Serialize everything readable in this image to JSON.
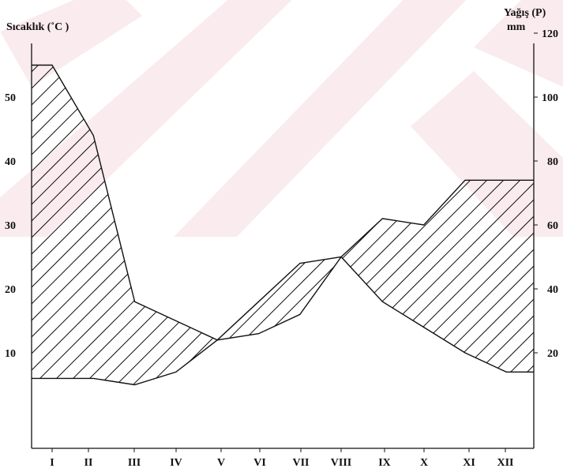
{
  "chart_data": {
    "type": "line",
    "categories": [
      "I",
      "II",
      "III",
      "IV",
      "V",
      "VI",
      "VII",
      "VIII",
      "IX",
      "X",
      "XI",
      "XII"
    ],
    "left_axis": {
      "label": "Sıcaklık (˚C )",
      "ticks": [
        10,
        20,
        30,
        40,
        50
      ]
    },
    "right_axis": {
      "label_line1": "Yağış (P)",
      "label_line2": "mm",
      "ticks": [
        20,
        40,
        60,
        80,
        100,
        120
      ]
    },
    "ylim": [
      0,
      65
    ],
    "series": [
      {
        "name": "",
        "values": [
          55,
          44,
          18,
          15,
          12,
          18,
          24,
          25,
          31,
          30,
          37,
          37
        ]
      },
      {
        "name": "",
        "values": [
          6,
          6,
          5,
          7,
          12,
          13,
          16,
          25,
          18,
          14,
          10,
          7
        ]
      }
    ],
    "colors": {
      "ink": "#111111",
      "watermark": "#f7dfe3"
    }
  }
}
